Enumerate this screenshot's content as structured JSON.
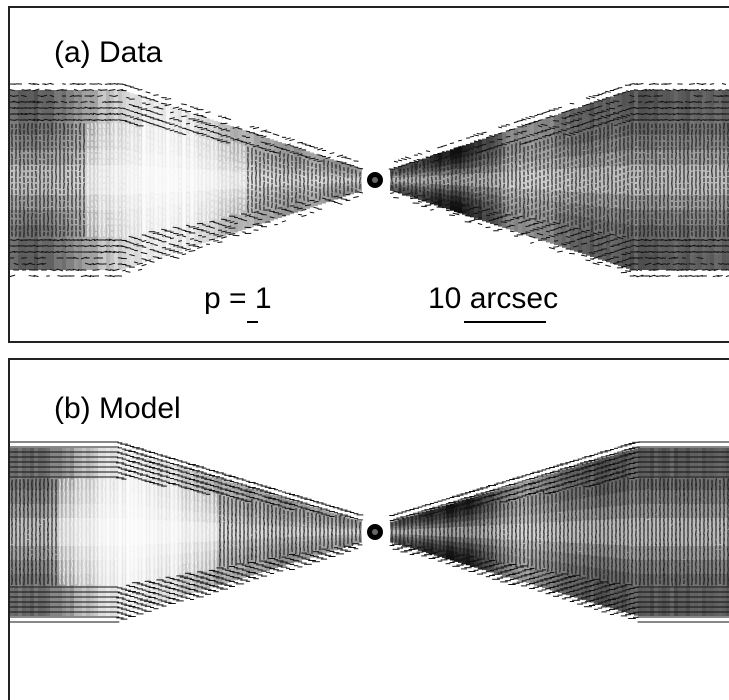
{
  "panels": {
    "a": {
      "label": "(a) Data"
    },
    "b": {
      "label": "(b) Model"
    }
  },
  "annotations": {
    "p_scale": "p = 1",
    "angular_scale": "10 arcsec"
  }
}
